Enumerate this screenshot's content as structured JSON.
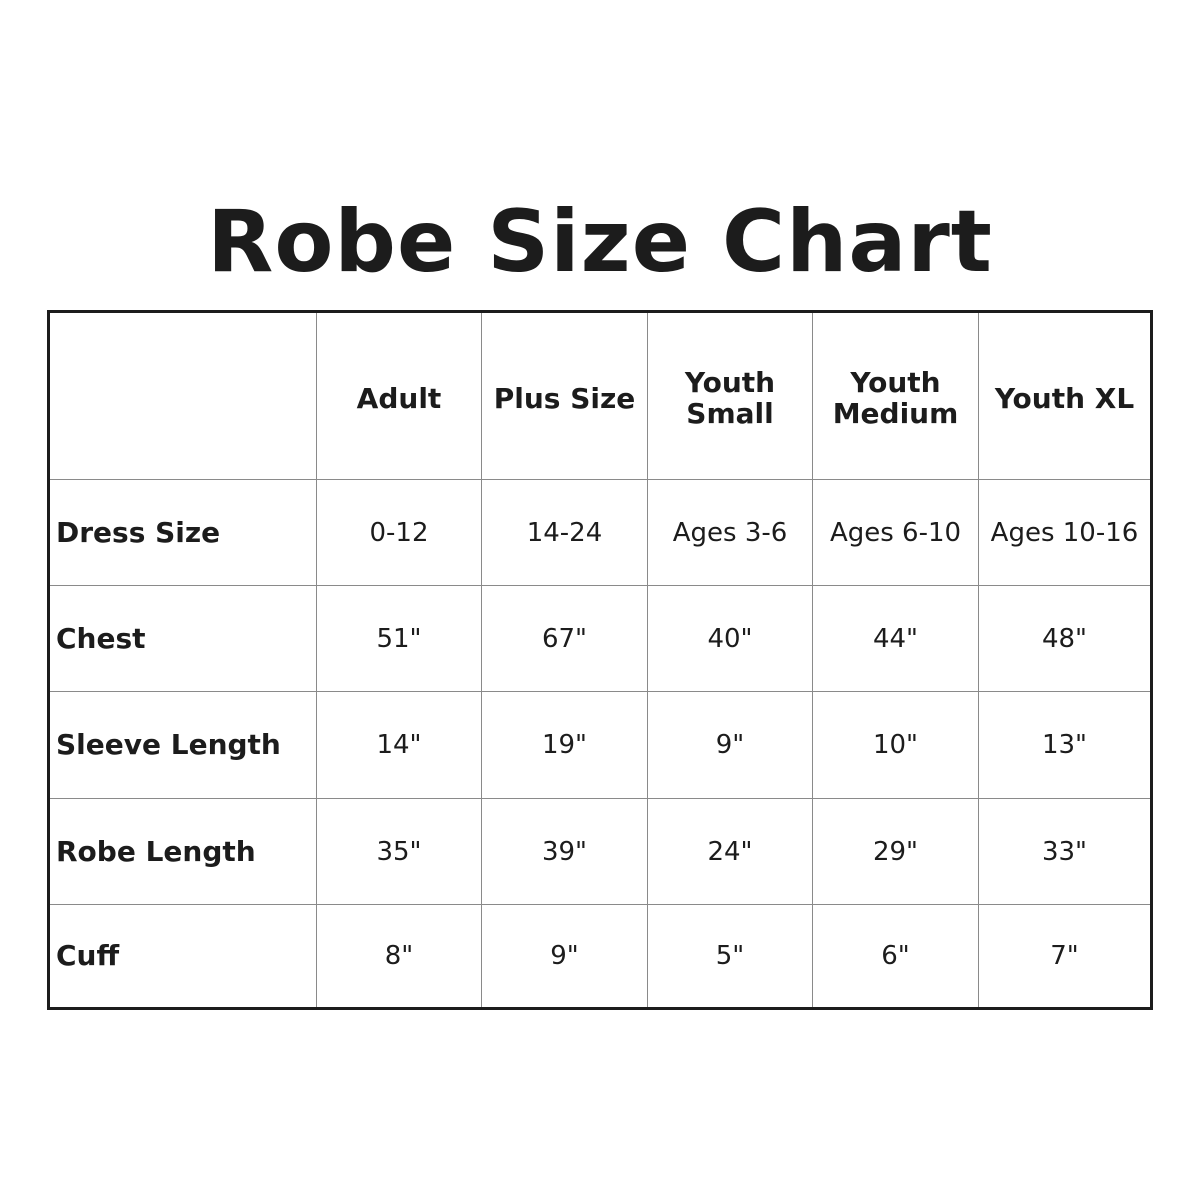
{
  "title": "Robe Size Chart",
  "table": {
    "columns": [
      "",
      "Adult",
      "Plus Size",
      "Youth Small",
      "Youth Medium",
      "Youth XL"
    ],
    "rows": [
      {
        "label": "Dress Size",
        "values": [
          "0-12",
          "14-24",
          "Ages 3-6",
          "Ages 6-10",
          "Ages 10-16"
        ]
      },
      {
        "label": "Chest",
        "values": [
          "51\"",
          "67\"",
          "40\"",
          "44\"",
          "48\""
        ]
      },
      {
        "label": "Sleeve Length",
        "values": [
          "14\"",
          "19\"",
          "9\"",
          "10\"",
          "13\""
        ]
      },
      {
        "label": "Robe Length",
        "values": [
          "35\"",
          "39\"",
          "24\"",
          "29\"",
          "33\""
        ]
      },
      {
        "label": "Cuff",
        "values": [
          "8\"",
          "9\"",
          "5\"",
          "6\"",
          "7\""
        ]
      }
    ]
  }
}
